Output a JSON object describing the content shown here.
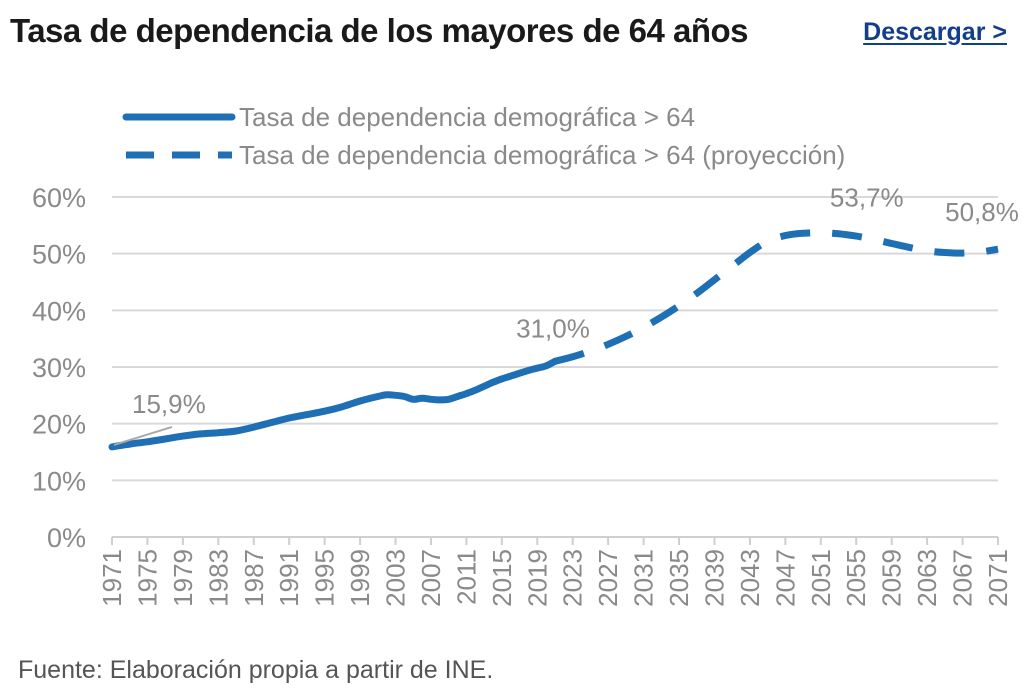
{
  "header": {
    "title": "Tasa de dependencia de los mayores de 64 años",
    "download_label": "Descargar >"
  },
  "source": "Fuente: Elaboración propia a partir de INE.",
  "colors": {
    "series": "#1f6fb5",
    "grid": "#d9d9d9",
    "text": "#8a8a8a",
    "link": "#123e8c"
  },
  "chart_data": {
    "type": "line",
    "title": "Tasa de dependencia de los mayores de 64 años",
    "xlabel": "",
    "ylabel": "",
    "ylim": [
      0,
      60
    ],
    "yticks": [
      "0%",
      "10%",
      "20%",
      "30%",
      "40%",
      "50%",
      "60%"
    ],
    "xticks": [
      "1971",
      "1975",
      "1979",
      "1983",
      "1987",
      "1991",
      "1995",
      "1999",
      "2003",
      "2007",
      "2011",
      "2015",
      "2019",
      "2023",
      "2027",
      "2031",
      "2035",
      "2039",
      "2043",
      "2047",
      "2051",
      "2055",
      "2059",
      "2063",
      "2067",
      "2071"
    ],
    "grid": true,
    "legend_position": "top-left",
    "series": [
      {
        "name": "Tasa de dependencia demográfica > 64",
        "style": "solid",
        "x": [
          1971,
          1973,
          1975,
          1977,
          1979,
          1981,
          1983,
          1985,
          1987,
          1989,
          1991,
          1993,
          1995,
          1997,
          1999,
          2001,
          2002,
          2003,
          2004,
          2005,
          2006,
          2007,
          2008,
          2009,
          2010,
          2011,
          2012,
          2013,
          2014,
          2015,
          2016,
          2017,
          2018,
          2019,
          2020,
          2021
        ],
        "values": [
          15.9,
          16.4,
          16.8,
          17.3,
          17.8,
          18.2,
          18.4,
          18.7,
          19.4,
          20.2,
          21.0,
          21.6,
          22.2,
          23.0,
          24.0,
          24.8,
          25.1,
          25.0,
          24.8,
          24.3,
          24.5,
          24.3,
          24.2,
          24.3,
          24.8,
          25.3,
          25.9,
          26.6,
          27.3,
          27.9,
          28.4,
          28.9,
          29.4,
          29.8,
          30.2,
          31.0
        ]
      },
      {
        "name": "Tasa de dependencia demográfica > 64 (proyección)",
        "style": "dashed",
        "x": [
          2021,
          2023,
          2025,
          2027,
          2029,
          2031,
          2033,
          2035,
          2037,
          2039,
          2041,
          2043,
          2045,
          2047,
          2049,
          2051,
          2053,
          2055,
          2057,
          2059,
          2061,
          2063,
          2065,
          2067,
          2069,
          2071
        ],
        "values": [
          31.0,
          31.8,
          32.8,
          34.0,
          35.4,
          37.0,
          38.8,
          40.8,
          43.0,
          45.4,
          47.8,
          50.2,
          52.2,
          53.2,
          53.6,
          53.7,
          53.5,
          53.1,
          52.5,
          51.8,
          51.1,
          50.5,
          50.2,
          50.1,
          50.3,
          50.8
        ]
      }
    ],
    "annotations": [
      {
        "text": "15,9%",
        "year": 1971,
        "value": 15.9
      },
      {
        "text": "31,0%",
        "year": 2021,
        "value": 31.0
      },
      {
        "text": "53,7%",
        "year": 2051,
        "value": 53.7
      },
      {
        "text": "50,8%",
        "year": 2071,
        "value": 50.8
      }
    ]
  }
}
